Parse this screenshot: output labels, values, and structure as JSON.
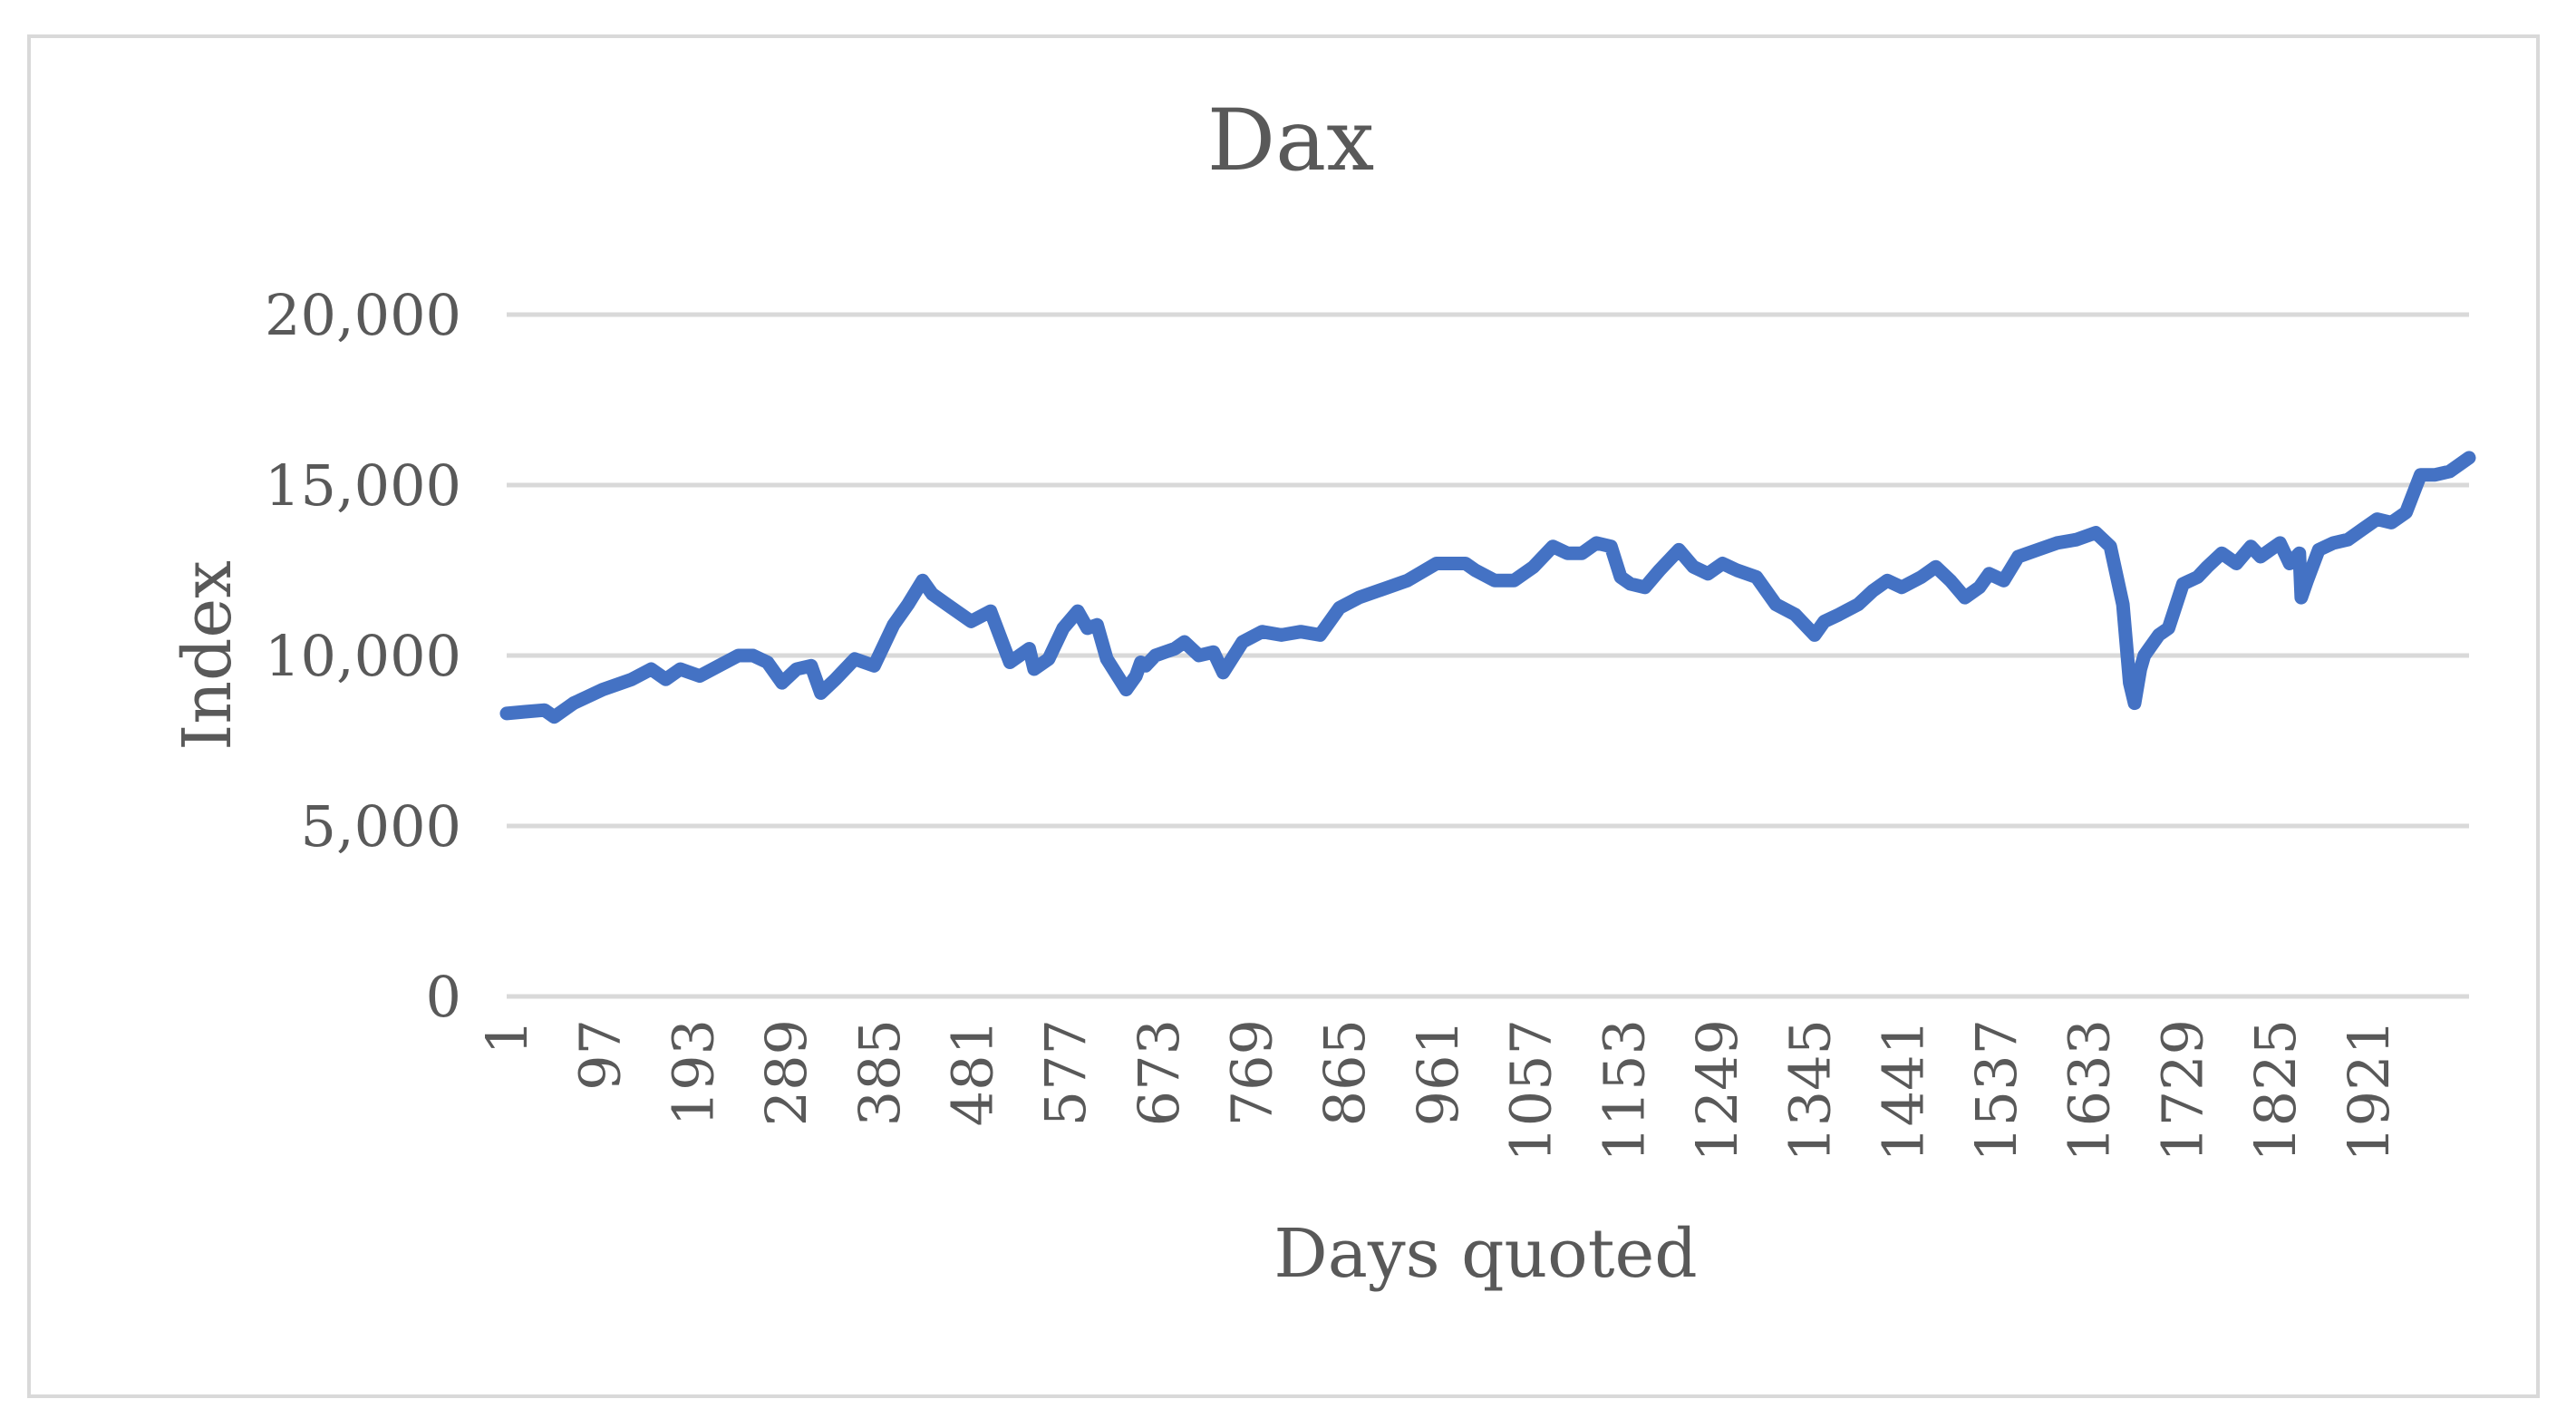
{
  "chart_data": {
    "type": "line",
    "title": "Dax",
    "xlabel": "Days quoted",
    "ylabel": "Index",
    "ylim": [
      0,
      20000
    ],
    "yticks": [
      0,
      5000,
      10000,
      15000,
      20000
    ],
    "ytick_labels": [
      "0",
      "5,000",
      "10,000",
      "15,000",
      "20,000"
    ],
    "xlim": [
      1,
      2025
    ],
    "xticks": [
      1,
      97,
      193,
      289,
      385,
      481,
      577,
      673,
      769,
      865,
      961,
      1057,
      1153,
      1249,
      1345,
      1441,
      1537,
      1633,
      1729,
      1825,
      1921
    ],
    "xtick_labels": [
      "1",
      "97",
      "193",
      "289",
      "385",
      "481",
      "577",
      "673",
      "769",
      "865",
      "961",
      "1057",
      "1153",
      "1249",
      "1345",
      "1441",
      "1537",
      "1633",
      "1729",
      "1825",
      "1921"
    ],
    "grid": true,
    "series": [
      {
        "color": "#4472c4",
        "x": [
          1,
          20,
          40,
          50,
          70,
          100,
          130,
          150,
          165,
          180,
          200,
          220,
          240,
          255,
          270,
          285,
          300,
          315,
          325,
          340,
          360,
          380,
          400,
          415,
          430,
          440,
          455,
          465,
          480,
          500,
          520,
          540,
          545,
          560,
          575,
          590,
          600,
          610,
          620,
          640,
          650,
          655,
          660,
          670,
          680,
          690,
          700,
          715,
          730,
          740,
          760,
          780,
          800,
          820,
          840,
          860,
          880,
          900,
          930,
          960,
          990,
          1000,
          1020,
          1040,
          1060,
          1080,
          1095,
          1110,
          1125,
          1140,
          1150,
          1160,
          1175,
          1190,
          1210,
          1225,
          1240,
          1255,
          1270,
          1290,
          1310,
          1330,
          1350,
          1360,
          1375,
          1395,
          1410,
          1425,
          1440,
          1460,
          1475,
          1490,
          1505,
          1520,
          1530,
          1545,
          1560,
          1580,
          1600,
          1620,
          1640,
          1655,
          1668,
          1675,
          1680,
          1686,
          1690,
          1695,
          1705,
          1715,
          1730,
          1745,
          1755,
          1770,
          1785,
          1800,
          1810,
          1820,
          1830,
          1840,
          1850,
          1852,
          1858,
          1870,
          1885,
          1900,
          1915,
          1930,
          1945,
          1960,
          1975,
          1990,
          2005,
          2025
        ],
        "values": [
          8300,
          8350,
          8400,
          8200,
          8600,
          9000,
          9300,
          9600,
          9300,
          9600,
          9400,
          9700,
          10000,
          10000,
          9800,
          9200,
          9600,
          9700,
          8900,
          9300,
          9900,
          9700,
          10900,
          11500,
          12200,
          11800,
          11500,
          11300,
          11000,
          11300,
          9800,
          10200,
          9600,
          9900,
          10800,
          11300,
          10800,
          10900,
          9900,
          9000,
          9400,
          9800,
          9700,
          10000,
          10100,
          10200,
          10400,
          10000,
          10100,
          9500,
          10400,
          10700,
          10600,
          10700,
          10600,
          11400,
          11700,
          11900,
          12200,
          12700,
          12700,
          12500,
          12200,
          12200,
          12600,
          13200,
          13000,
          13000,
          13300,
          13200,
          12300,
          12100,
          12000,
          12500,
          13100,
          12600,
          12400,
          12700,
          12500,
          12300,
          11500,
          11200,
          10600,
          11000,
          11200,
          11500,
          11900,
          12200,
          12000,
          12300,
          12600,
          12200,
          11700,
          12000,
          12400,
          12200,
          12900,
          13100,
          13300,
          13400,
          13600,
          13200,
          11500,
          9200,
          8600,
          9600,
          10000,
          10200,
          10600,
          10800,
          12100,
          12300,
          12600,
          13000,
          12700,
          13200,
          12900,
          13100,
          13300,
          12700,
          13000,
          11700,
          12200,
          13100,
          13300,
          13400,
          13700,
          14000,
          13900,
          14200,
          15300,
          15300,
          15400,
          15800
        ]
      }
    ]
  }
}
